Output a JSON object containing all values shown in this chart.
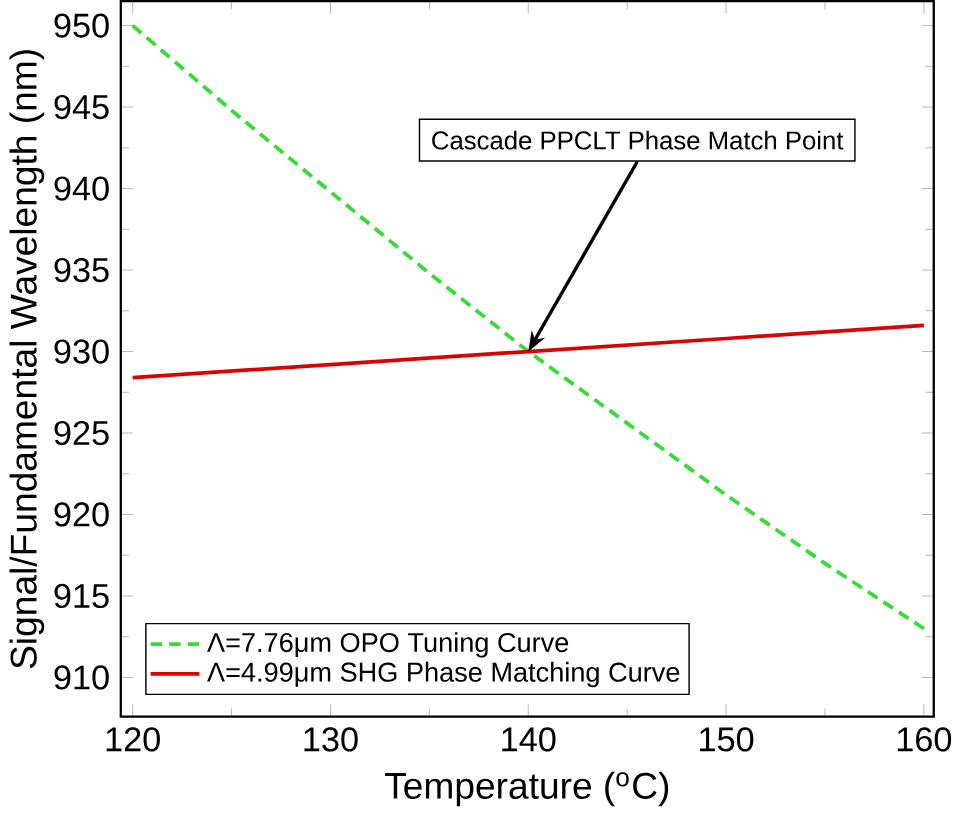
{
  "chart_data": {
    "type": "line",
    "xlabel": "Temperature ($^{o}$C)",
    "ylabel": "Signal/Fundamental Wavelength (nm)",
    "xlim": [
      119.4,
      160.5
    ],
    "ylim": [
      907.6,
      951.5
    ],
    "xticks": [
      120,
      130,
      140,
      150,
      160
    ],
    "yticks": [
      910,
      915,
      920,
      925,
      930,
      935,
      940,
      945,
      950
    ],
    "series": [
      {
        "name": "Λ=7.76μm OPO Tuning Curve",
        "color": "#33dd33",
        "line_style": "dashed",
        "x": [
          120,
          125,
          130,
          135,
          140,
          145,
          150,
          155,
          160
        ],
        "values": [
          950,
          944.8,
          939.8,
          934.8,
          930,
          925.6,
          921.2,
          917,
          913
        ]
      },
      {
        "name": "Λ=4.99μm SHG Phase Matching Curve",
        "color": "#dd0000",
        "line_style": "solid",
        "x": [
          120,
          130,
          140,
          150,
          160
        ],
        "values": [
          928.4,
          929.2,
          930,
          930.8,
          931.6
        ]
      }
    ],
    "annotations": [
      {
        "text": "Cascade PPCLT Phase Match Point",
        "x": 140,
        "y": 930
      }
    ],
    "legend": "bottom left",
    "grid": false
  }
}
